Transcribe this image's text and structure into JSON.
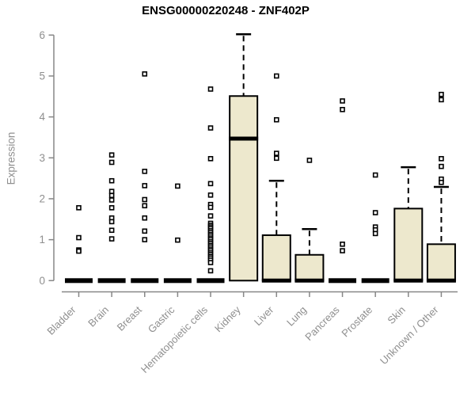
{
  "colors": {
    "box_fill": "#EDE8CD",
    "box_stroke": "#000000",
    "whisker": "#000000",
    "axis": "#878787",
    "label_text": "#8f8f8f",
    "title_text": "#000000",
    "outlier_fill": "#ffffff"
  },
  "chart_data": {
    "type": "boxplot",
    "title": "ENSG00000220248 - ZNF402P",
    "xlabel": "",
    "ylabel": "Expression",
    "ylim": [
      0,
      6
    ],
    "y_ticks": [
      0,
      1,
      2,
      3,
      4,
      5,
      6
    ],
    "grid": "off",
    "legend": "none",
    "categories": [
      "Bladder",
      "Brain",
      "Breast",
      "Gastric",
      "Hematopoietic cells",
      "Kidney",
      "Liver",
      "Lung",
      "Pancreas",
      "Prostate",
      "Skin",
      "Unknown / Other"
    ],
    "series": [
      {
        "name": "Bladder",
        "q1": 0,
        "median": 0,
        "q3": 0,
        "whisker_low": 0,
        "whisker_high": 0,
        "outliers": [
          1.78,
          1.05,
          0.75,
          0.72
        ]
      },
      {
        "name": "Brain",
        "q1": 0,
        "median": 0,
        "q3": 0,
        "whisker_low": 0,
        "whisker_high": 0,
        "outliers": [
          3.07,
          2.89,
          2.44,
          2.18,
          2.08,
          1.97,
          1.78,
          1.53,
          1.44,
          1.23,
          1.02
        ]
      },
      {
        "name": "Breast",
        "q1": 0,
        "median": 0,
        "q3": 0,
        "whisker_low": 0,
        "whisker_high": 0,
        "outliers": [
          5.05,
          2.67,
          2.32,
          1.98,
          1.83,
          1.53,
          1.21,
          1.0
        ]
      },
      {
        "name": "Gastric",
        "q1": 0,
        "median": 0,
        "q3": 0,
        "whisker_low": 0,
        "whisker_high": 0,
        "outliers": [
          2.31,
          0.99
        ]
      },
      {
        "name": "Hematopoietic cells",
        "q1": 0,
        "median": 0,
        "q3": 0,
        "whisker_low": 0,
        "whisker_high": 0,
        "outliers": [
          4.68,
          3.73,
          2.98,
          2.37,
          2.09,
          1.86,
          1.79,
          1.58,
          1.4,
          1.35,
          1.31,
          1.27,
          1.22,
          1.18,
          1.13,
          1.09,
          1.04,
          1.0,
          0.95,
          0.91,
          0.86,
          0.82,
          0.77,
          0.73,
          0.68,
          0.64,
          0.59,
          0.55,
          0.5,
          0.44,
          0.24
        ]
      },
      {
        "name": "Kidney",
        "q1": 0,
        "median": 3.47,
        "q3": 4.51,
        "whisker_low": 0,
        "whisker_high": 6.02,
        "outliers": []
      },
      {
        "name": "Liver",
        "q1": 0,
        "median": 0,
        "q3": 1.11,
        "whisker_low": 0,
        "whisker_high": 2.44,
        "outliers": [
          5.0,
          3.93,
          3.11,
          2.99
        ]
      },
      {
        "name": "Lung",
        "q1": 0,
        "median": 0,
        "q3": 0.63,
        "whisker_low": 0,
        "whisker_high": 1.26,
        "outliers": [
          2.94
        ]
      },
      {
        "name": "Pancreas",
        "q1": 0,
        "median": 0,
        "q3": 0,
        "whisker_low": 0,
        "whisker_high": 0,
        "outliers": [
          4.39,
          4.18,
          0.89,
          0.73
        ]
      },
      {
        "name": "Prostate",
        "q1": 0,
        "median": 0,
        "q3": 0,
        "whisker_low": 0,
        "whisker_high": 0,
        "outliers": [
          2.58,
          1.66,
          1.31,
          1.24,
          1.15
        ]
      },
      {
        "name": "Skin",
        "q1": 0,
        "median": 0,
        "q3": 1.76,
        "whisker_low": 0,
        "whisker_high": 2.77,
        "outliers": []
      },
      {
        "name": "Unknown / Other",
        "q1": 0,
        "median": 0,
        "q3": 0.89,
        "whisker_low": 0,
        "whisker_high": 2.29,
        "outliers": [
          4.55,
          4.42,
          2.98,
          2.79,
          2.48,
          2.4
        ]
      }
    ]
  }
}
